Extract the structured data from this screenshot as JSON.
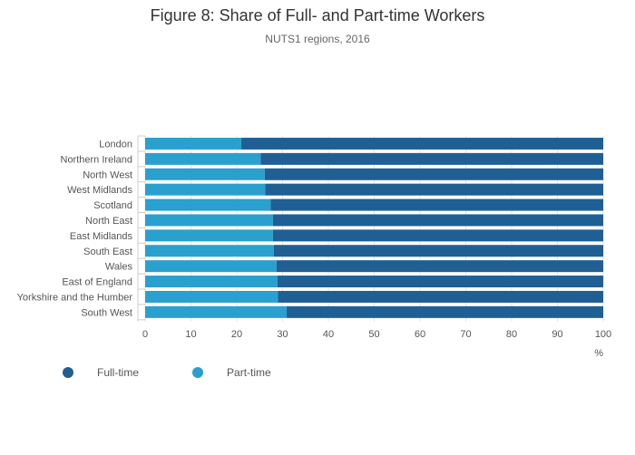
{
  "chart_data": {
    "type": "bar",
    "orientation": "horizontal",
    "stacked": true,
    "title": "Figure 8: Share of Full- and Part-time Workers",
    "subtitle": "NUTS1 regions, 2016",
    "xlabel": "%",
    "ylabel": "",
    "xlim": [
      0,
      100
    ],
    "xticks": [
      0,
      10,
      20,
      30,
      40,
      50,
      60,
      70,
      80,
      90,
      100
    ],
    "grid": true,
    "legend_position": "bottom-left",
    "categories": [
      "London",
      "Northern Ireland",
      "North West",
      "West Midlands",
      "Scotland",
      "North East",
      "East Midlands",
      "South East",
      "Wales",
      "East of England",
      "Yorkshire and the Humber",
      "South West"
    ],
    "series": [
      {
        "name": "Part-time",
        "color": "#2aa0cf",
        "values": [
          21.0,
          25.2,
          26.1,
          26.2,
          27.4,
          27.9,
          27.9,
          28.1,
          28.7,
          28.9,
          29.0,
          30.9
        ]
      },
      {
        "name": "Full-time",
        "color": "#1f5f94",
        "values": [
          79.0,
          74.8,
          73.9,
          73.8,
          72.6,
          72.1,
          72.1,
          71.9,
          71.3,
          71.1,
          71.0,
          69.1
        ]
      }
    ],
    "legend": [
      {
        "name": "Full-time",
        "color": "#1f5f94"
      },
      {
        "name": "Part-time",
        "color": "#2aa0cf"
      }
    ]
  }
}
